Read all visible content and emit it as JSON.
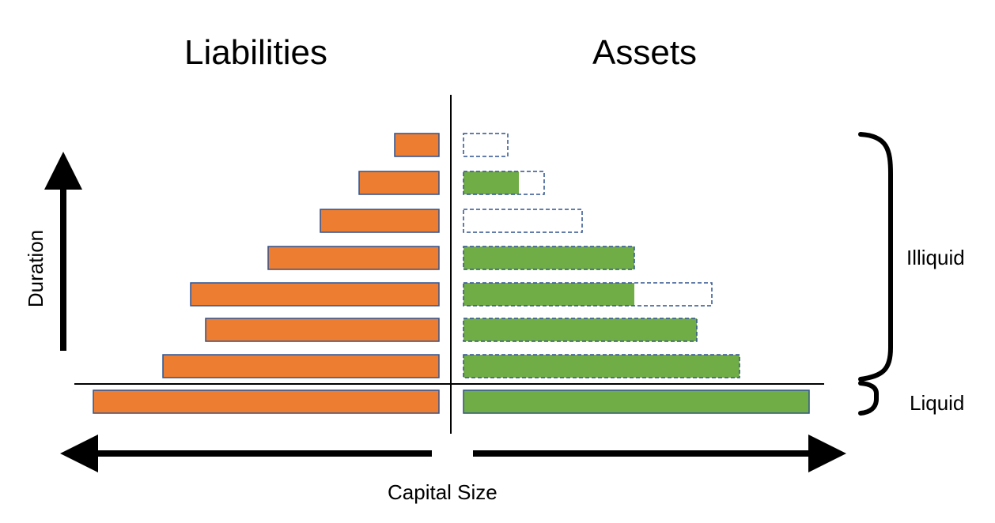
{
  "headings": {
    "liabilities": "Liabilities",
    "assets": "Assets"
  },
  "axes": {
    "vertical_label": "Duration",
    "horizontal_label": "Capital Size"
  },
  "brackets": {
    "illiquid": "Illiquid",
    "liquid": "Liquid"
  },
  "colors": {
    "liability_fill": "#ED7D31",
    "liability_stroke": "#2F528F",
    "asset_fill": "#70AD47",
    "asset_outline": "#2F528F",
    "axis": "#000000"
  },
  "chart_data": {
    "type": "bar",
    "levels_top_to_bottom": [
      {
        "liability": 56,
        "asset_filled": 0,
        "asset_capacity": 56
      },
      {
        "liability": 101,
        "asset_filled": 70,
        "asset_capacity": 102
      },
      {
        "liability": 150,
        "asset_filled": 0,
        "asset_capacity": 150
      },
      {
        "liability": 216,
        "asset_filled": 216,
        "asset_capacity": 216
      },
      {
        "liability": 314,
        "asset_filled": 216,
        "asset_capacity": 314
      },
      {
        "liability": 295,
        "asset_filled": 295,
        "asset_capacity": 295
      },
      {
        "liability": 349,
        "asset_filled": 349,
        "asset_capacity": 349
      },
      {
        "liability": 437,
        "asset_filled": 437,
        "asset_capacity": 437
      }
    ]
  }
}
